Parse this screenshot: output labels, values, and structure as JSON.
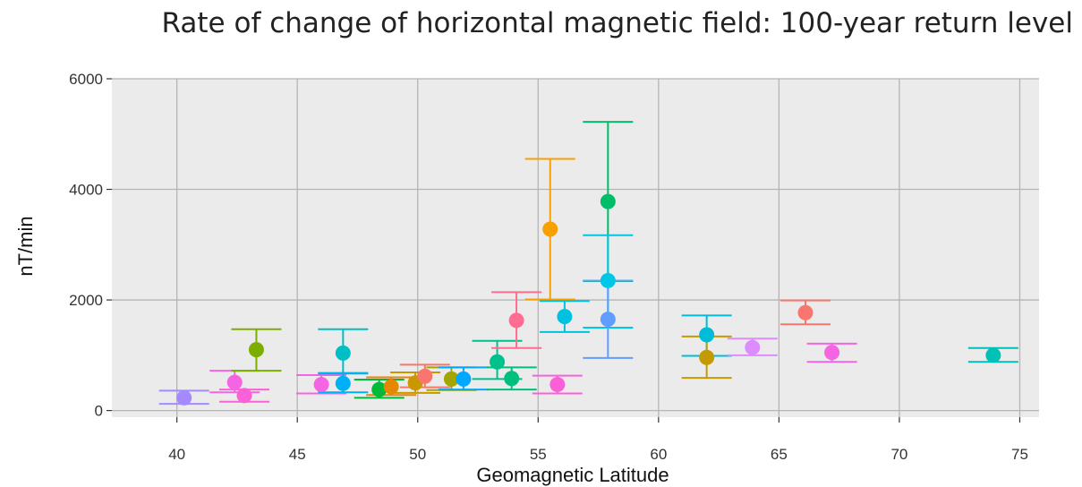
{
  "chart_data": {
    "type": "scatter",
    "title": "Rate of change of horizontal magnetic field: 100-year return level",
    "xlabel": "Geomagnetic Latitude",
    "ylabel": "nT/min",
    "xlim": [
      37.3,
      75.8
    ],
    "ylim": [
      -120,
      6000
    ],
    "xticks": [
      "40",
      "45",
      "50",
      "55",
      "60",
      "65",
      "70",
      "75"
    ],
    "yticks": [
      "0",
      "2000",
      "4000",
      "6000"
    ],
    "grid": true,
    "legend": "none",
    "points": [
      {
        "x": 40.3,
        "y": 230,
        "low": 120,
        "high": 360,
        "color": "#a58aff"
      },
      {
        "x": 42.4,
        "y": 510,
        "low": 330,
        "high": 720,
        "color": "#f564e3"
      },
      {
        "x": 42.8,
        "y": 270,
        "low": 160,
        "high": 380,
        "color": "#fb61d7"
      },
      {
        "x": 43.3,
        "y": 1100,
        "low": 720,
        "high": 1470,
        "color": "#7cae00"
      },
      {
        "x": 46.0,
        "y": 470,
        "low": 310,
        "high": 640,
        "color": "#f564e3"
      },
      {
        "x": 46.9,
        "y": 1040,
        "low": 680,
        "high": 1470,
        "color": "#00bfc4"
      },
      {
        "x": 46.9,
        "y": 490,
        "low": 330,
        "high": 670,
        "color": "#00b0f6"
      },
      {
        "x": 48.4,
        "y": 380,
        "low": 230,
        "high": 560,
        "color": "#00ba38"
      },
      {
        "x": 48.9,
        "y": 430,
        "low": 280,
        "high": 600,
        "color": "#e58700"
      },
      {
        "x": 49.9,
        "y": 500,
        "low": 320,
        "high": 690,
        "color": "#c99800"
      },
      {
        "x": 50.3,
        "y": 620,
        "low": 420,
        "high": 830,
        "color": "#f8766d"
      },
      {
        "x": 51.4,
        "y": 570,
        "low": 370,
        "high": 780,
        "color": "#a3a500"
      },
      {
        "x": 51.9,
        "y": 570,
        "low": 380,
        "high": 780,
        "color": "#00a9ff"
      },
      {
        "x": 53.3,
        "y": 880,
        "low": 570,
        "high": 1260,
        "color": "#00c08b"
      },
      {
        "x": 53.9,
        "y": 580,
        "low": 380,
        "high": 780,
        "color": "#00bf7d"
      },
      {
        "x": 54.1,
        "y": 1630,
        "low": 1130,
        "high": 2140,
        "color": "#ff6c91"
      },
      {
        "x": 55.5,
        "y": 3280,
        "low": 2010,
        "high": 4550,
        "color": "#f8a000"
      },
      {
        "x": 55.8,
        "y": 470,
        "low": 310,
        "high": 630,
        "color": "#fb61d7"
      },
      {
        "x": 56.1,
        "y": 1700,
        "low": 1420,
        "high": 1980,
        "color": "#00c1e0"
      },
      {
        "x": 57.9,
        "y": 3780,
        "low": 2340,
        "high": 5220,
        "color": "#00be67"
      },
      {
        "x": 57.9,
        "y": 2350,
        "low": 1500,
        "high": 3170,
        "color": "#00c6e8"
      },
      {
        "x": 57.9,
        "y": 1650,
        "low": 950,
        "high": 2350,
        "color": "#619cff"
      },
      {
        "x": 62.0,
        "y": 1370,
        "low": 990,
        "high": 1720,
        "color": "#00bcd8"
      },
      {
        "x": 62.0,
        "y": 960,
        "low": 590,
        "high": 1340,
        "color": "#c49a00"
      },
      {
        "x": 63.9,
        "y": 1140,
        "low": 1000,
        "high": 1300,
        "color": "#dc8cff"
      },
      {
        "x": 66.1,
        "y": 1770,
        "low": 1560,
        "high": 1990,
        "color": "#f8766d"
      },
      {
        "x": 67.2,
        "y": 1050,
        "low": 880,
        "high": 1210,
        "color": "#f564e3"
      },
      {
        "x": 73.9,
        "y": 1000,
        "low": 880,
        "high": 1130,
        "color": "#00c0b8"
      }
    ]
  }
}
